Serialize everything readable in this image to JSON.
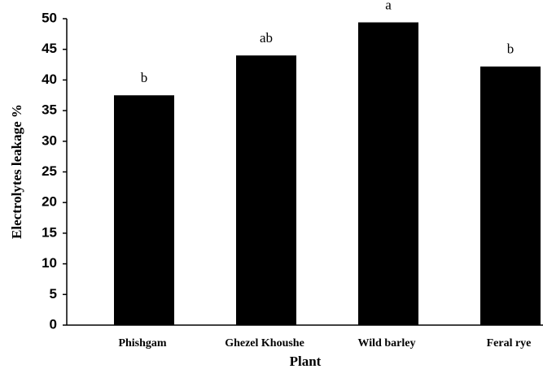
{
  "chart_data": {
    "type": "bar",
    "y_label": "Electrolytes leakage %",
    "x_label": "Plant",
    "categories": [
      "Phishgam",
      "Ghezel Khoushe",
      "Wild barley",
      "Feral rye"
    ],
    "values": [
      37.5,
      44,
      49.4,
      42.2
    ],
    "annotations": [
      "b",
      "ab",
      "a",
      "b"
    ],
    "color": "#000000",
    "ylim": [
      0,
      50
    ],
    "yticks": [
      0,
      5,
      10,
      15,
      20,
      25,
      30,
      35,
      40,
      45,
      50
    ],
    "grid": false
  }
}
